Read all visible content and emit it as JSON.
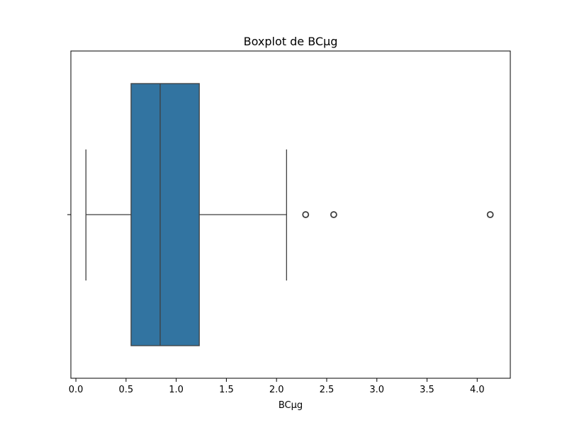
{
  "chart_data": {
    "type": "boxplot",
    "title": "Boxplot de BCµg",
    "xlabel": "BCµg",
    "ylabel": "",
    "xlim": [
      -0.05,
      4.33
    ],
    "xticks": [
      0.0,
      0.5,
      1.0,
      1.5,
      2.0,
      2.5,
      3.0,
      3.5,
      4.0
    ],
    "xtick_labels": [
      "0.0",
      "0.5",
      "1.0",
      "1.5",
      "2.0",
      "2.5",
      "3.0",
      "3.5",
      "4.0"
    ],
    "box": {
      "whisker_low": 0.1,
      "q1": 0.55,
      "median": 0.84,
      "q3": 1.23,
      "whisker_high": 2.1
    },
    "outliers": [
      2.29,
      2.57,
      4.13
    ],
    "grid": false,
    "colors": {
      "box_fill": "#3274a1",
      "line": "#3f3f3f"
    }
  }
}
